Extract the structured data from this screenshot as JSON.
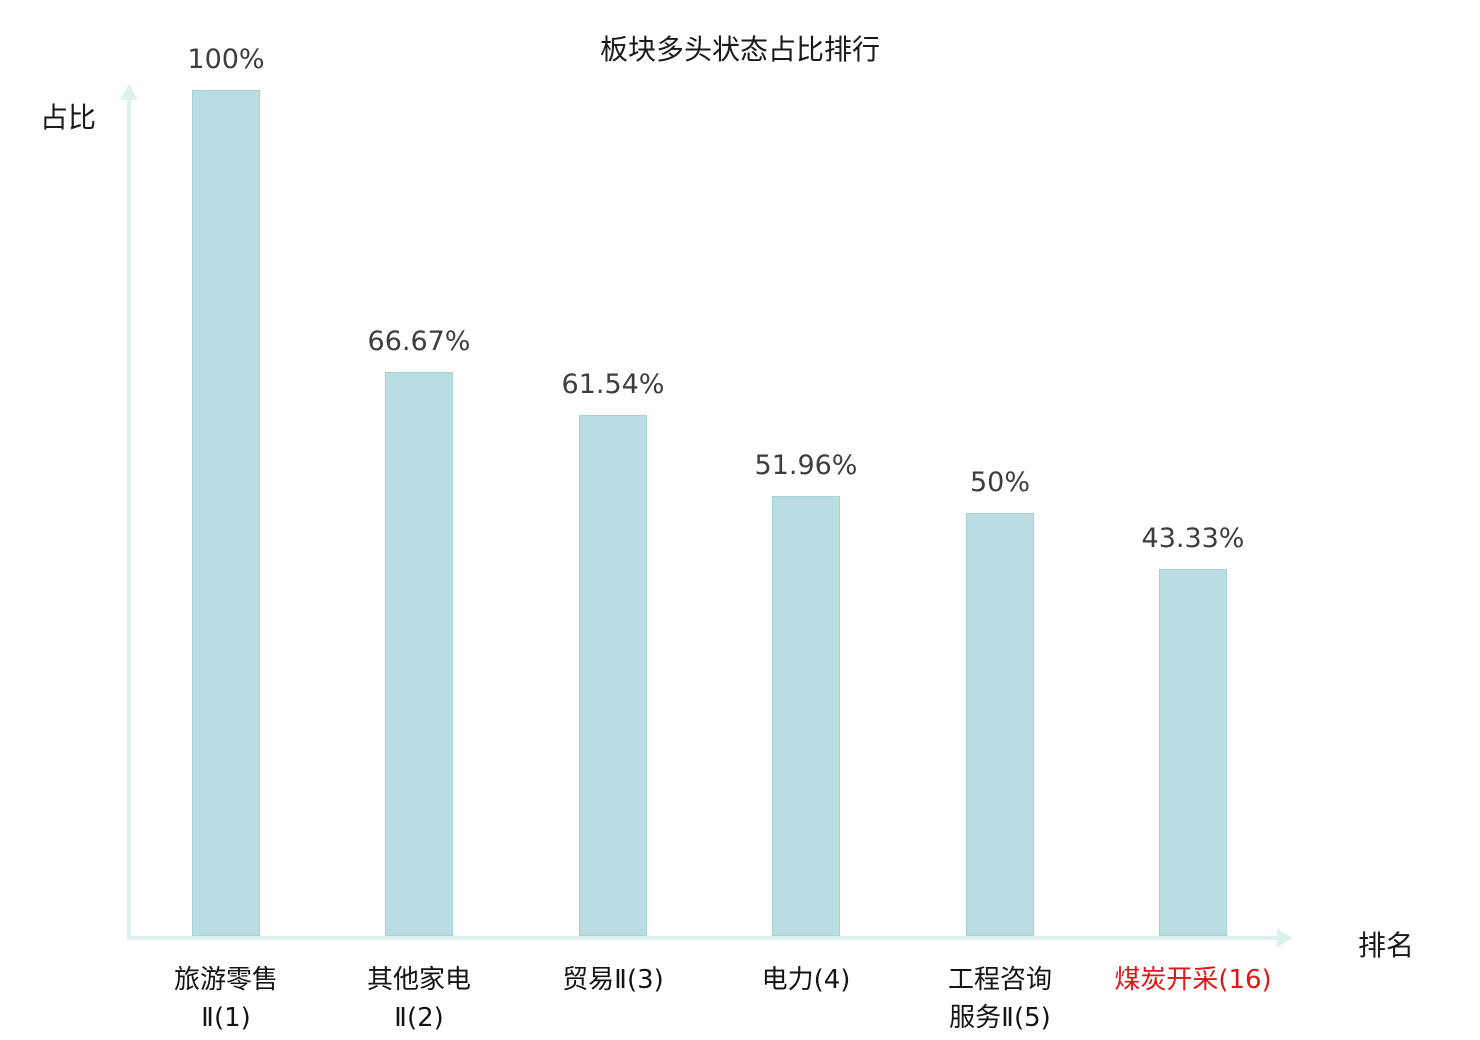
{
  "title": "板块多头状态占比排行",
  "ylabel": "占比",
  "xlabel": "排名",
  "chart_data": {
    "type": "bar",
    "title": "板块多头状态占比排行",
    "xlabel": "排名",
    "ylabel": "占比",
    "categories": [
      "旅游零售Ⅱ(1)",
      "其他家电Ⅱ(2)",
      "贸易Ⅱ(3)",
      "电力(4)",
      "工程咨询服务Ⅱ(5)",
      "煤炭开采(16)"
    ],
    "category_lines": [
      [
        "旅游零售",
        "Ⅱ(1)"
      ],
      [
        "其他家电",
        "Ⅱ(2)"
      ],
      [
        "贸易Ⅱ(3)"
      ],
      [
        "电力(4)"
      ],
      [
        "工程咨询",
        "服务Ⅱ(5)"
      ],
      [
        "煤炭开采(16)"
      ]
    ],
    "values": [
      100,
      66.67,
      61.54,
      51.96,
      50,
      43.33
    ],
    "value_labels": [
      "100%",
      "66.67%",
      "61.54%",
      "51.96%",
      "50%",
      "43.33%"
    ],
    "highlight_index": 5,
    "highlight_color": "#e01616",
    "bar_fill": "#b9dde1",
    "bar_border": "#a3d2d8",
    "axis_color": "#def0ed",
    "ylim": [
      0,
      100
    ],
    "legend": "none",
    "grid": "off"
  }
}
